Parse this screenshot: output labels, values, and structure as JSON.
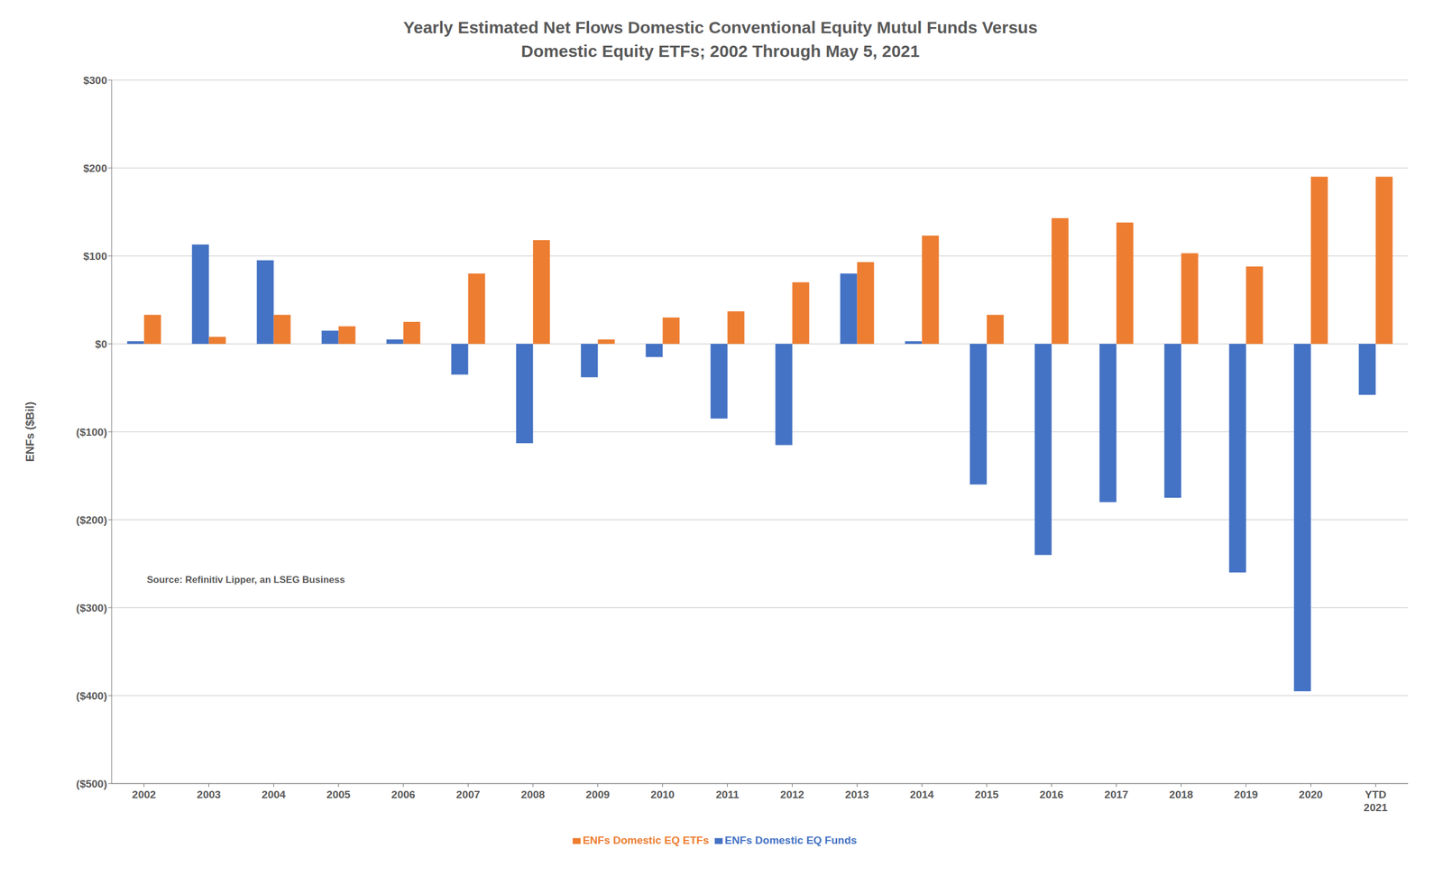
{
  "chart_data": {
    "type": "bar",
    "title": "Yearly Estimated Net Flows Domestic Conventional Equity Mutul Funds Versus\nDomestic Equity ETFs; 2002 Through May 5, 2021",
    "ylabel": "ENFs ($Bil)",
    "categories": [
      "2002",
      "2003",
      "2004",
      "2005",
      "2006",
      "2007",
      "2008",
      "2009",
      "2010",
      "2011",
      "2012",
      "2013",
      "2014",
      "2015",
      "2016",
      "2017",
      "2018",
      "2019",
      "2020",
      "YTD\n2021"
    ],
    "series": [
      {
        "name": "ENFs Domestic EQ Funds",
        "color": "#4472C4",
        "values": [
          3,
          113,
          95,
          15,
          5,
          -35,
          -113,
          -38,
          -15,
          -85,
          -115,
          80,
          3,
          -160,
          -240,
          -180,
          -175,
          -260,
          -395,
          -58
        ]
      },
      {
        "name": "ENFs Domestic EQ ETFs",
        "color": "#ED7D31",
        "values": [
          33,
          8,
          33,
          20,
          25,
          80,
          118,
          5,
          30,
          37,
          70,
          93,
          123,
          33,
          143,
          138,
          103,
          88,
          190,
          190
        ]
      }
    ],
    "ylim": [
      -500,
      300
    ],
    "yticks": [
      {
        "value": 300,
        "label": "$300"
      },
      {
        "value": 200,
        "label": "$200"
      },
      {
        "value": 100,
        "label": "$100"
      },
      {
        "value": 0,
        "label": "$0"
      },
      {
        "value": -100,
        "label": "($100)"
      },
      {
        "value": -200,
        "label": "($200)"
      },
      {
        "value": -300,
        "label": "($300)"
      },
      {
        "value": -400,
        "label": "($400)"
      },
      {
        "value": -500,
        "label": "($500)"
      }
    ],
    "grid": true,
    "legend": "bottom",
    "annotations": [
      "Source: Refinitiv Lipper, an LSEG Business"
    ]
  }
}
